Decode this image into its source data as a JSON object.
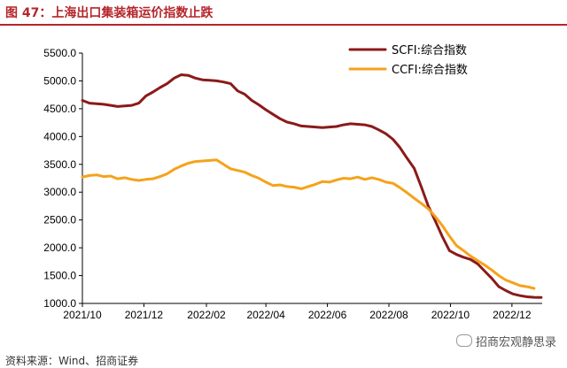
{
  "header": {
    "title": "图 47：上海出口集装箱运价指数止跌"
  },
  "footer": {
    "source": "资料来源：Wind、招商证券",
    "watermark": "招商宏观静思录"
  },
  "chart_data": {
    "type": "line",
    "title": "",
    "xlabel": "",
    "ylabel": "",
    "ylim": [
      1000,
      5500
    ],
    "yticks": [
      "1000.0",
      "1500.0",
      "2000.0",
      "2500.0",
      "3000.0",
      "3500.0",
      "4000.0",
      "4500.0",
      "5000.0",
      "5500.0"
    ],
    "xlim": [
      "2021-10-01",
      "2022-12-31"
    ],
    "xticks": [
      {
        "date": "2021-10-01",
        "label": "2021/10"
      },
      {
        "date": "2021-12-01",
        "label": "2021/12"
      },
      {
        "date": "2022-02-01",
        "label": "2022/02"
      },
      {
        "date": "2022-04-01",
        "label": "2022/04"
      },
      {
        "date": "2022-06-01",
        "label": "2022/06"
      },
      {
        "date": "2022-08-01",
        "label": "2022/08"
      },
      {
        "date": "2022-10-01",
        "label": "2022/10"
      },
      {
        "date": "2022-12-01",
        "label": "2022/12"
      }
    ],
    "legend_position": "top-right",
    "grid": false,
    "series": [
      {
        "name": "SCFI:综合指数",
        "color": "#8b1a1a",
        "points": [
          [
            "2021-10-01",
            4650
          ],
          [
            "2021-10-08",
            4600
          ],
          [
            "2021-10-15",
            4590
          ],
          [
            "2021-10-22",
            4580
          ],
          [
            "2021-10-29",
            4560
          ],
          [
            "2021-11-05",
            4540
          ],
          [
            "2021-11-12",
            4550
          ],
          [
            "2021-11-19",
            4560
          ],
          [
            "2021-11-26",
            4600
          ],
          [
            "2021-12-03",
            4730
          ],
          [
            "2021-12-10",
            4800
          ],
          [
            "2021-12-17",
            4880
          ],
          [
            "2021-12-24",
            4950
          ],
          [
            "2021-12-31",
            5050
          ],
          [
            "2022-01-07",
            5110
          ],
          [
            "2022-01-14",
            5100
          ],
          [
            "2022-01-21",
            5050
          ],
          [
            "2022-01-28",
            5020
          ],
          [
            "2022-02-04",
            5010
          ],
          [
            "2022-02-11",
            5000
          ],
          [
            "2022-02-18",
            4980
          ],
          [
            "2022-02-25",
            4950
          ],
          [
            "2022-03-04",
            4820
          ],
          [
            "2022-03-11",
            4760
          ],
          [
            "2022-03-18",
            4650
          ],
          [
            "2022-03-25",
            4570
          ],
          [
            "2022-04-01",
            4480
          ],
          [
            "2022-04-08",
            4400
          ],
          [
            "2022-04-15",
            4320
          ],
          [
            "2022-04-22",
            4260
          ],
          [
            "2022-04-29",
            4230
          ],
          [
            "2022-05-06",
            4190
          ],
          [
            "2022-05-13",
            4180
          ],
          [
            "2022-05-20",
            4170
          ],
          [
            "2022-05-27",
            4160
          ],
          [
            "2022-06-03",
            4170
          ],
          [
            "2022-06-10",
            4180
          ],
          [
            "2022-06-17",
            4210
          ],
          [
            "2022-06-24",
            4230
          ],
          [
            "2022-07-01",
            4220
          ],
          [
            "2022-07-08",
            4210
          ],
          [
            "2022-07-15",
            4180
          ],
          [
            "2022-07-22",
            4120
          ],
          [
            "2022-07-29",
            4050
          ],
          [
            "2022-08-05",
            3950
          ],
          [
            "2022-08-12",
            3800
          ],
          [
            "2022-08-19",
            3610
          ],
          [
            "2022-08-26",
            3430
          ],
          [
            "2022-09-02",
            3100
          ],
          [
            "2022-09-09",
            2750
          ],
          [
            "2022-09-16",
            2480
          ],
          [
            "2022-09-23",
            2200
          ],
          [
            "2022-09-30",
            1950
          ],
          [
            "2022-10-07",
            1880
          ],
          [
            "2022-10-14",
            1830
          ],
          [
            "2022-10-21",
            1790
          ],
          [
            "2022-10-28",
            1710
          ],
          [
            "2022-11-04",
            1580
          ],
          [
            "2022-11-11",
            1450
          ],
          [
            "2022-11-18",
            1300
          ],
          [
            "2022-11-25",
            1230
          ],
          [
            "2022-12-02",
            1170
          ],
          [
            "2022-12-09",
            1140
          ],
          [
            "2022-12-16",
            1120
          ],
          [
            "2022-12-23",
            1110
          ],
          [
            "2022-12-30",
            1108
          ]
        ]
      },
      {
        "name": "CCFI:综合指数",
        "color": "#f5a21b",
        "points": [
          [
            "2021-10-01",
            3270
          ],
          [
            "2021-10-08",
            3300
          ],
          [
            "2021-10-15",
            3310
          ],
          [
            "2021-10-22",
            3280
          ],
          [
            "2021-10-29",
            3290
          ],
          [
            "2021-11-05",
            3240
          ],
          [
            "2021-11-12",
            3260
          ],
          [
            "2021-11-19",
            3230
          ],
          [
            "2021-11-26",
            3210
          ],
          [
            "2021-12-03",
            3230
          ],
          [
            "2021-12-10",
            3240
          ],
          [
            "2021-12-17",
            3280
          ],
          [
            "2021-12-24",
            3330
          ],
          [
            "2021-12-31",
            3410
          ],
          [
            "2022-01-07",
            3470
          ],
          [
            "2022-01-14",
            3520
          ],
          [
            "2022-01-21",
            3550
          ],
          [
            "2022-01-28",
            3560
          ],
          [
            "2022-02-04",
            3570
          ],
          [
            "2022-02-11",
            3580
          ],
          [
            "2022-02-18",
            3500
          ],
          [
            "2022-02-25",
            3420
          ],
          [
            "2022-03-04",
            3390
          ],
          [
            "2022-03-11",
            3360
          ],
          [
            "2022-03-18",
            3300
          ],
          [
            "2022-03-25",
            3250
          ],
          [
            "2022-04-01",
            3180
          ],
          [
            "2022-04-08",
            3120
          ],
          [
            "2022-04-15",
            3130
          ],
          [
            "2022-04-22",
            3100
          ],
          [
            "2022-04-29",
            3090
          ],
          [
            "2022-05-06",
            3060
          ],
          [
            "2022-05-13",
            3100
          ],
          [
            "2022-05-20",
            3140
          ],
          [
            "2022-05-27",
            3190
          ],
          [
            "2022-06-03",
            3180
          ],
          [
            "2022-06-10",
            3220
          ],
          [
            "2022-06-17",
            3250
          ],
          [
            "2022-06-24",
            3240
          ],
          [
            "2022-07-01",
            3270
          ],
          [
            "2022-07-08",
            3230
          ],
          [
            "2022-07-15",
            3260
          ],
          [
            "2022-07-22",
            3230
          ],
          [
            "2022-07-29",
            3180
          ],
          [
            "2022-08-05",
            3160
          ],
          [
            "2022-08-12",
            3080
          ],
          [
            "2022-08-19",
            2990
          ],
          [
            "2022-08-26",
            2890
          ],
          [
            "2022-09-02",
            2800
          ],
          [
            "2022-09-09",
            2700
          ],
          [
            "2022-09-16",
            2560
          ],
          [
            "2022-09-23",
            2400
          ],
          [
            "2022-09-30",
            2210
          ],
          [
            "2022-10-07",
            2040
          ],
          [
            "2022-10-14",
            1950
          ],
          [
            "2022-10-21",
            1850
          ],
          [
            "2022-10-28",
            1770
          ],
          [
            "2022-11-04",
            1690
          ],
          [
            "2022-11-11",
            1600
          ],
          [
            "2022-11-18",
            1500
          ],
          [
            "2022-11-25",
            1420
          ],
          [
            "2022-12-02",
            1370
          ],
          [
            "2022-12-09",
            1320
          ],
          [
            "2022-12-16",
            1300
          ],
          [
            "2022-12-23",
            1270
          ]
        ]
      }
    ]
  }
}
